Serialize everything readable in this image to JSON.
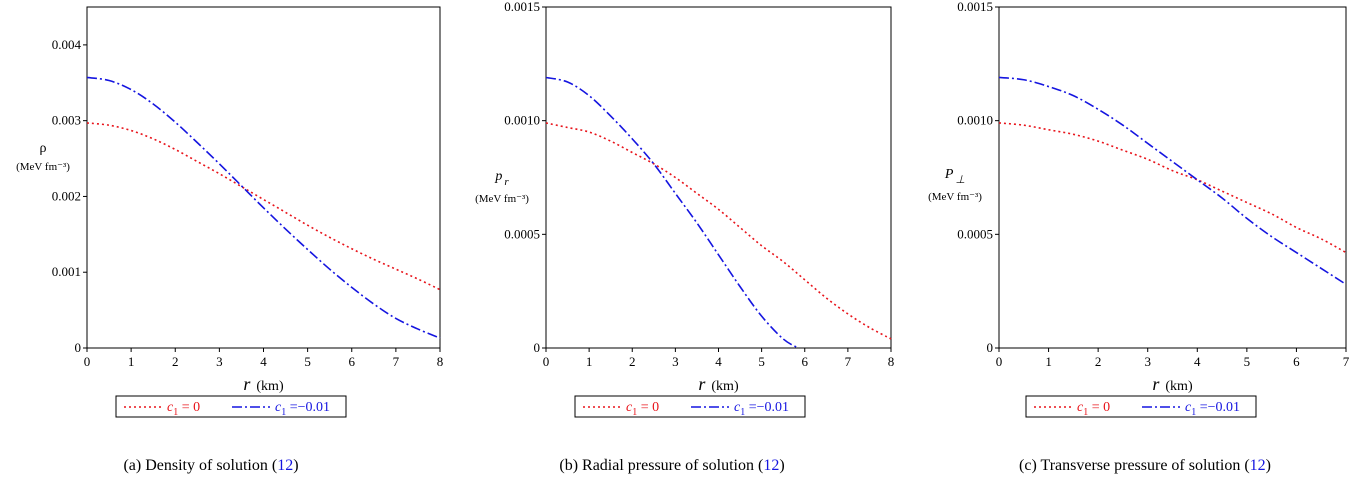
{
  "chart_data": [
    {
      "type": "line",
      "caption": "(a) Density of solution",
      "caption_ref": "12",
      "ylabel_symbol": "ρ",
      "ylabel_unit": "(MeV fm⁻³)",
      "xlabel_symbol": "r",
      "xlabel_unit": "(km)",
      "xlim": [
        0,
        8
      ],
      "ylim": [
        0,
        0.0045
      ],
      "xticks": [
        "0",
        "1",
        "2",
        "3",
        "4",
        "5",
        "6",
        "7",
        "8"
      ],
      "yticks": [
        {
          "v": 0,
          "label": "0"
        },
        {
          "v": 0.001,
          "label": "0.001"
        },
        {
          "v": 0.002,
          "label": "0.002"
        },
        {
          "v": 0.003,
          "label": "0.003"
        },
        {
          "v": 0.004,
          "label": "0.004"
        }
      ],
      "series": [
        {
          "name": "c1 = 0",
          "color": "#e8141b",
          "style": "dotted",
          "x": [
            0,
            0.5,
            1,
            1.5,
            2,
            2.5,
            3,
            3.5,
            4,
            4.5,
            5,
            5.5,
            6,
            6.5,
            7,
            7.5,
            8
          ],
          "y": [
            0.00297,
            0.00294,
            0.00287,
            0.00276,
            0.00262,
            0.00246,
            0.0023,
            0.00213,
            0.00196,
            0.00179,
            0.00162,
            0.00146,
            0.00131,
            0.00117,
            0.00104,
            0.00091,
            0.00077
          ]
        },
        {
          "name": "c1 = -0.01",
          "color": "#1515e0",
          "style": "dashdot",
          "x": [
            0,
            0.5,
            1,
            1.5,
            2,
            2.5,
            3,
            3.5,
            4,
            4.5,
            5,
            5.5,
            6,
            6.5,
            7,
            7.5,
            8
          ],
          "y": [
            0.00357,
            0.00353,
            0.00341,
            0.00322,
            0.00298,
            0.00271,
            0.00243,
            0.00214,
            0.00185,
            0.00157,
            0.0013,
            0.00104,
            0.0008,
            0.00058,
            0.00039,
            0.00025,
            0.00013
          ]
        }
      ],
      "legend": [
        {
          "prefix": "c",
          "sub": "1",
          "value": " = 0"
        },
        {
          "prefix": "c",
          "sub": "1",
          "value": " =−0.01"
        }
      ]
    },
    {
      "type": "line",
      "caption": "(b) Radial pressure of solution",
      "caption_ref": "12",
      "ylabel_symbol": "p",
      "ylabel_sub": "r",
      "ylabel_unit": "(MeV fm⁻³)",
      "xlabel_symbol": "r",
      "xlabel_unit": "(km)",
      "xlim": [
        0,
        8
      ],
      "ylim": [
        0,
        0.0015
      ],
      "xticks": [
        "0",
        "1",
        "2",
        "3",
        "4",
        "5",
        "6",
        "7",
        "8"
      ],
      "yticks": [
        {
          "v": 0,
          "label": "0"
        },
        {
          "v": 0.0005,
          "label": "0.0005"
        },
        {
          "v": 0.001,
          "label": "0.0010"
        },
        {
          "v": 0.0015,
          "label": "0.0015"
        }
      ],
      "series": [
        {
          "name": "c1 = 0",
          "color": "#e8141b",
          "style": "dotted",
          "x": [
            0,
            0.5,
            1,
            1.5,
            2,
            2.5,
            3,
            3.5,
            4,
            4.5,
            5,
            5.5,
            6,
            6.5,
            7,
            7.5,
            8
          ],
          "y": [
            0.00099,
            0.00097,
            0.00095,
            0.00091,
            0.00086,
            0.00081,
            0.00075,
            0.00068,
            0.00061,
            0.00053,
            0.00045,
            0.00038,
            0.0003,
            0.00022,
            0.00015,
            9e-05,
            4e-05
          ]
        },
        {
          "name": "c1 = -0.01",
          "color": "#1515e0",
          "style": "dashdot",
          "x": [
            0,
            0.5,
            1,
            1.5,
            2,
            2.5,
            3,
            3.5,
            4,
            4.5,
            5,
            5.5,
            5.85
          ],
          "y": [
            0.00119,
            0.00117,
            0.00111,
            0.00102,
            0.00092,
            0.00081,
            0.00068,
            0.00055,
            0.00041,
            0.00027,
            0.00014,
            4e-05,
            0.0
          ]
        }
      ],
      "legend": [
        {
          "prefix": "c",
          "sub": "1",
          "value": " = 0"
        },
        {
          "prefix": "c",
          "sub": "1",
          "value": " =−0.01"
        }
      ]
    },
    {
      "type": "line",
      "caption": "(c) Transverse pressure of solution",
      "caption_ref": "12",
      "ylabel_symbol": "P",
      "ylabel_sub": "⊥",
      "ylabel_unit": "(MeV fm⁻³)",
      "xlabel_symbol": "r",
      "xlabel_unit": "(km)",
      "xlim": [
        0,
        7
      ],
      "ylim": [
        0,
        0.0015
      ],
      "xticks": [
        "0",
        "1",
        "2",
        "3",
        "4",
        "5",
        "6",
        "7"
      ],
      "yticks": [
        {
          "v": 0,
          "label": "0"
        },
        {
          "v": 0.0005,
          "label": "0.0005"
        },
        {
          "v": 0.001,
          "label": "0.0010"
        },
        {
          "v": 0.0015,
          "label": "0.0015"
        }
      ],
      "series": [
        {
          "name": "c1 = 0",
          "color": "#e8141b",
          "style": "dotted",
          "x": [
            0,
            0.5,
            1,
            1.5,
            2,
            2.5,
            3,
            3.5,
            4,
            4.5,
            5,
            5.5,
            6,
            6.5,
            7
          ],
          "y": [
            0.00099,
            0.00098,
            0.00096,
            0.00094,
            0.00091,
            0.00087,
            0.00083,
            0.00078,
            0.00074,
            0.00069,
            0.00064,
            0.00059,
            0.00053,
            0.00048,
            0.00042
          ]
        },
        {
          "name": "c1 = -0.01",
          "color": "#1515e0",
          "style": "dashdot",
          "x": [
            0,
            0.5,
            1,
            1.5,
            2,
            2.5,
            3,
            3.5,
            4,
            4.5,
            5,
            5.5,
            6,
            6.5,
            7
          ],
          "y": [
            0.00119,
            0.00118,
            0.00115,
            0.00111,
            0.00105,
            0.00098,
            0.0009,
            0.00082,
            0.00074,
            0.00066,
            0.00057,
            0.00049,
            0.00042,
            0.00035,
            0.00028
          ]
        }
      ],
      "legend": [
        {
          "prefix": "c",
          "sub": "1",
          "value": " = 0"
        },
        {
          "prefix": "c",
          "sub": "1",
          "value": " =−0.01"
        }
      ]
    }
  ]
}
